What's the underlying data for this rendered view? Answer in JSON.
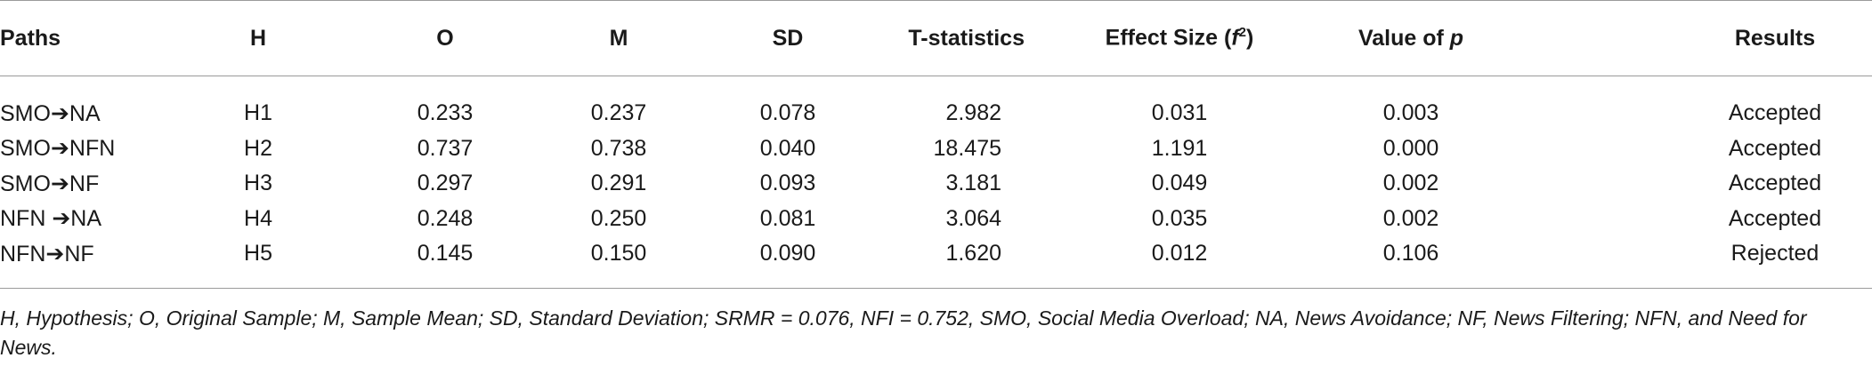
{
  "table": {
    "headers": {
      "paths": "Paths",
      "h": "H",
      "o": "O",
      "m": "M",
      "sd": "SD",
      "t": "T-statistics",
      "effect_prefix": "Effect Size (",
      "effect_f": "f",
      "effect_sup": "2",
      "effect_suffix": ")",
      "pvalue_prefix": "Value of ",
      "pvalue_p": "p",
      "results": "Results"
    },
    "rows": [
      {
        "from": "SMO",
        "arrow": "➔",
        "to": "NA",
        "h": "H1",
        "o": "0.233",
        "m": "0.237",
        "sd": "0.078",
        "t": "2.982",
        "f2": "0.031",
        "p": "0.003",
        "result": "Accepted"
      },
      {
        "from": "SMO",
        "arrow": "➔",
        "to": "NFN",
        "h": "H2",
        "o": "0.737",
        "m": "0.738",
        "sd": "0.040",
        "t": "18.475",
        "f2": "1.191",
        "p": "0.000",
        "result": "Accepted"
      },
      {
        "from": "SMO",
        "arrow": "➔",
        "to": "NF",
        "h": "H3",
        "o": "0.297",
        "m": "0.291",
        "sd": "0.093",
        "t": "3.181",
        "f2": "0.049",
        "p": "0.002",
        "result": "Accepted"
      },
      {
        "from": "NFN ",
        "arrow": "➔",
        "to": "NA",
        "h": "H4",
        "o": "0.248",
        "m": "0.250",
        "sd": "0.081",
        "t": "3.064",
        "f2": "0.035",
        "p": "0.002",
        "result": "Accepted"
      },
      {
        "from": "NFN",
        "arrow": "➔",
        "to": "NF",
        "h": "H5",
        "o": "0.145",
        "m": "0.150",
        "sd": "0.090",
        "t": "1.620",
        "f2": "0.012",
        "p": "0.106",
        "result": "Rejected"
      }
    ]
  },
  "footnote": "H, Hypothesis; O, Original Sample; M, Sample Mean; SD, Standard Deviation; SRMR = 0.076, NFI = 0.752, SMO, Social Media Overload; NA, News Avoidance; NF, News Filtering; NFN, and Need for News."
}
